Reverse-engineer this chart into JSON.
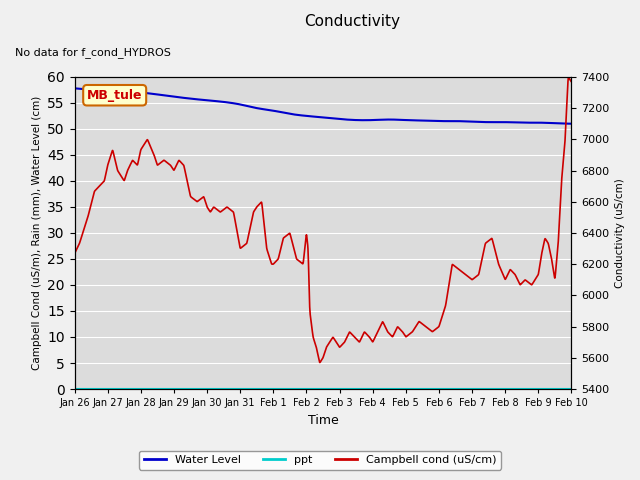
{
  "title": "Conductivity",
  "top_left_text": "No data for f_cond_HYDROS",
  "station_label": "MB_tule",
  "xlabel": "Time",
  "ylabel_left": "Campbell Cond (uS/m), Rain (mm), Water Level (cm)",
  "ylabel_right": "Conductivity (uS/cm)",
  "ylim_left": [
    0,
    60
  ],
  "ylim_right": [
    5400,
    7400
  ],
  "yticks_right": [
    5400,
    5600,
    5800,
    6000,
    6200,
    6400,
    6600,
    6800,
    7000,
    7200,
    7400
  ],
  "yticks_left": [
    0,
    5,
    10,
    15,
    20,
    25,
    30,
    35,
    40,
    45,
    50,
    55,
    60
  ],
  "background_color": "#dcdcdc",
  "figure_color": "#f0f0f0",
  "water_level_color": "#0000cc",
  "campbell_color": "#cc0000",
  "ppt_color": "#00cccc",
  "xtick_labels": [
    "Jan 26",
    "Jan 27",
    "Jan 28",
    "Jan 29",
    "Jan 30",
    "Jan 31",
    "Feb 1",
    "Feb 2",
    "Feb 3",
    "Feb 4",
    "Feb 5",
    "Feb 6",
    "Feb 7",
    "Feb 8",
    "Feb 9",
    "Feb 10"
  ],
  "n_days": 15,
  "station_box_color": "#ffffcc",
  "station_box_edge": "#cc6600",
  "station_label_color": "#cc0000"
}
